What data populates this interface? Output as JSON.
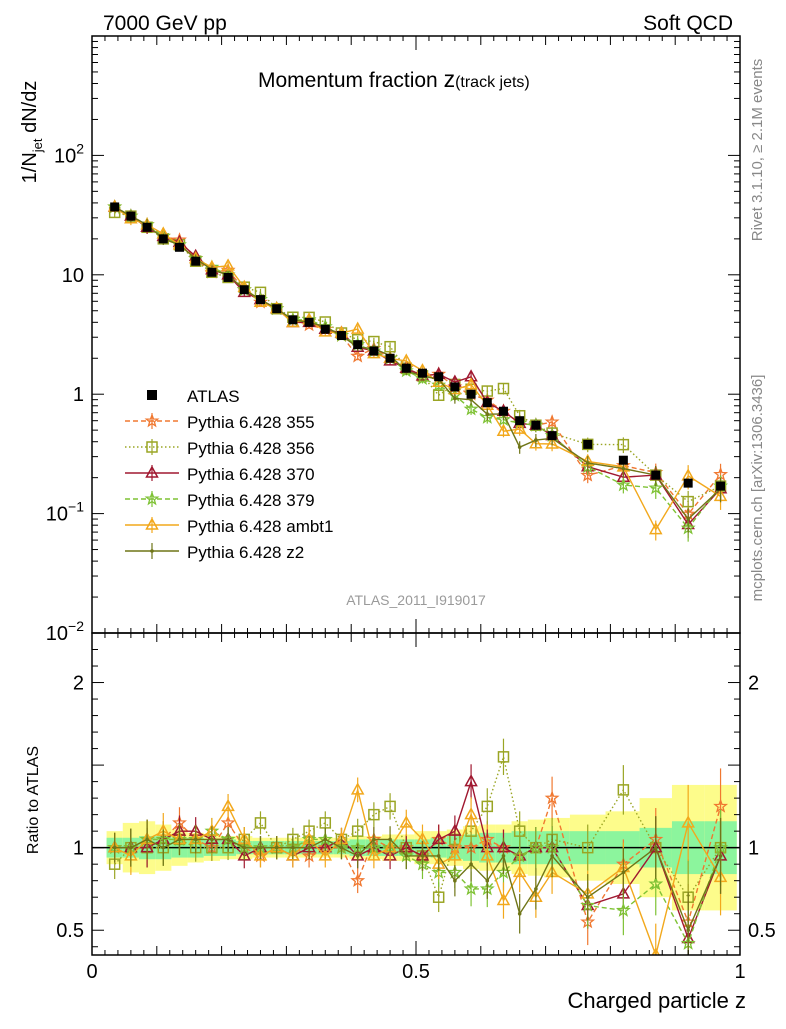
{
  "header": {
    "left": "7000 GeV pp",
    "right": "Soft QCD"
  },
  "side": {
    "rivet": "Rivet 3.1.10, ≥ 2.1M events",
    "mcplots": "mcplots.cern.ch [arXiv:1306.3436]"
  },
  "chart_data": {
    "type": "line",
    "title_main": "Momentum fraction ",
    "title_z": "z",
    "title_sub": "(track jets)",
    "analysis_id": "ATLAS_2011_I919017",
    "xlabel": "Charged particle z",
    "ylabel_parts": {
      "pre": "1/N",
      "sub": "jet",
      "post": " dN/dz"
    },
    "ratio_ylabel": "Ratio to ATLAS",
    "xlim": [
      0,
      1
    ],
    "ylim": [
      0.01,
      1000
    ],
    "yscale": "log",
    "ratio_ylim": [
      0.35,
      2.3
    ],
    "x_ticks": [
      "0",
      "0.5",
      "1"
    ],
    "y_ticks": [
      {
        "value": 100,
        "label": "10",
        "exp": "2"
      },
      {
        "value": 10,
        "label": "10",
        "exp": ""
      },
      {
        "value": 1,
        "label": "1",
        "exp": ""
      },
      {
        "value": 0.1,
        "label": "10",
        "exp": "−1"
      },
      {
        "value": 0.01,
        "label": "10",
        "exp": "−2"
      }
    ],
    "ratio_ticks": [
      {
        "value": 2,
        "label": "2"
      },
      {
        "value": 1,
        "label": "1"
      },
      {
        "value": 0.5,
        "label": "0.5"
      }
    ],
    "x": [
      0.035,
      0.06,
      0.085,
      0.11,
      0.135,
      0.16,
      0.185,
      0.21,
      0.235,
      0.26,
      0.285,
      0.31,
      0.335,
      0.36,
      0.385,
      0.41,
      0.435,
      0.46,
      0.485,
      0.51,
      0.535,
      0.56,
      0.585,
      0.61,
      0.635,
      0.66,
      0.685,
      0.71,
      0.765,
      0.82,
      0.87,
      0.92,
      0.97
    ],
    "atlas": {
      "name": "ATLAS",
      "values": [
        37.0,
        31.0,
        25.0,
        20.0,
        17.0,
        13.0,
        10.5,
        9.5,
        7.5,
        6.2,
        5.2,
        4.2,
        4.0,
        3.5,
        3.1,
        2.6,
        2.3,
        2.0,
        1.65,
        1.5,
        1.4,
        1.15,
        1.0,
        0.85,
        0.72,
        0.6,
        0.55,
        0.45,
        0.38,
        0.28,
        0.21,
        0.18,
        0.17
      ],
      "band_inner": [
        0.06,
        0.06,
        0.07,
        0.07,
        0.06,
        0.06,
        0.05,
        0.05,
        0.04,
        0.04,
        0.04,
        0.04,
        0.04,
        0.04,
        0.04,
        0.05,
        0.05,
        0.05,
        0.05,
        0.05,
        0.06,
        0.07,
        0.08,
        0.09,
        0.09,
        0.1,
        0.1,
        0.1,
        0.1,
        0.1,
        0.12,
        0.16,
        0.16
      ],
      "band_outer": [
        0.1,
        0.15,
        0.16,
        0.14,
        0.11,
        0.09,
        0.08,
        0.07,
        0.07,
        0.06,
        0.06,
        0.06,
        0.06,
        0.06,
        0.06,
        0.07,
        0.07,
        0.08,
        0.08,
        0.1,
        0.1,
        0.11,
        0.13,
        0.14,
        0.14,
        0.16,
        0.17,
        0.18,
        0.2,
        0.22,
        0.3,
        0.38,
        0.38
      ]
    },
    "series": [
      {
        "name": "Pythia 6.428 355",
        "color": "#f07830",
        "dash": "5,3",
        "marker": "star",
        "ratio": [
          1.0,
          1.0,
          1.05,
          1.05,
          1.15,
          1.05,
          1.0,
          1.15,
          1.0,
          0.95,
          1.0,
          1.0,
          0.95,
          1.0,
          1.0,
          0.8,
          1.05,
          1.0,
          1.0,
          0.95,
          1.05,
          1.0,
          1.0,
          1.05,
          1.0,
          0.95,
          1.0,
          1.3,
          0.55,
          0.9,
          1.05,
          0.55,
          1.25
        ]
      },
      {
        "name": "Pythia 6.428 356",
        "color": "#9aa524",
        "dash": "1.5,2.5",
        "marker": "square",
        "ratio": [
          0.9,
          1.0,
          1.0,
          1.0,
          1.05,
          1.0,
          1.0,
          1.0,
          1.05,
          1.15,
          1.0,
          1.05,
          1.1,
          1.15,
          1.05,
          1.1,
          1.2,
          1.25,
          1.0,
          0.95,
          0.7,
          1.05,
          1.1,
          1.25,
          1.55,
          1.1,
          1.0,
          1.05,
          1.0,
          1.35,
          1.0,
          0.7,
          1.0
        ]
      },
      {
        "name": "Pythia 6.428 370",
        "color": "#a01830",
        "dash": "",
        "marker": "triangle",
        "ratio": [
          1.0,
          1.0,
          1.0,
          1.05,
          1.1,
          1.1,
          1.05,
          1.05,
          0.95,
          1.0,
          1.0,
          0.95,
          1.0,
          1.0,
          1.05,
          0.95,
          1.0,
          0.95,
          1.0,
          0.95,
          1.05,
          1.1,
          1.4,
          1.0,
          1.0,
          0.95,
          1.0,
          1.0,
          0.65,
          0.72,
          1.0,
          0.45,
          0.95
        ]
      },
      {
        "name": "Pythia 6.428 379",
        "color": "#7ec234",
        "dash": "5,3",
        "marker": "star",
        "ratio": [
          1.0,
          1.0,
          1.05,
          1.05,
          1.05,
          1.05,
          1.1,
          1.05,
          1.0,
          1.0,
          1.0,
          1.0,
          1.05,
          1.05,
          1.0,
          1.0,
          1.0,
          1.0,
          0.95,
          0.9,
          0.85,
          0.85,
          0.75,
          0.75,
          0.85,
          0.95,
          1.0,
          1.0,
          0.65,
          0.62,
          0.78,
          0.42,
          1.0
        ]
      },
      {
        "name": "Pythia 6.428 ambt1",
        "color": "#f2a81c",
        "dash": "",
        "marker": "triangle",
        "ratio": [
          1.0,
          0.95,
          1.05,
          1.1,
          1.05,
          1.05,
          1.1,
          1.25,
          1.05,
          0.95,
          1.0,
          0.95,
          1.05,
          0.95,
          1.05,
          1.35,
          0.95,
          1.0,
          1.15,
          1.05,
          0.9,
          0.95,
          1.2,
          0.95,
          0.68,
          0.85,
          0.7,
          0.85,
          0.72,
          0.88,
          0.35,
          1.15,
          0.82
        ]
      },
      {
        "name": "Pythia 6.428 z2",
        "color": "#6f7517",
        "dash": "",
        "marker": "dot",
        "ratio": [
          1.0,
          1.0,
          1.05,
          1.0,
          1.05,
          1.05,
          1.05,
          1.05,
          1.0,
          1.0,
          1.0,
          1.0,
          1.0,
          1.05,
          1.0,
          0.95,
          1.05,
          1.05,
          0.95,
          0.95,
          0.95,
          0.8,
          0.9,
          0.8,
          0.95,
          0.6,
          0.75,
          0.95,
          0.7,
          0.85,
          1.0,
          0.5,
          0.95
        ]
      }
    ]
  }
}
